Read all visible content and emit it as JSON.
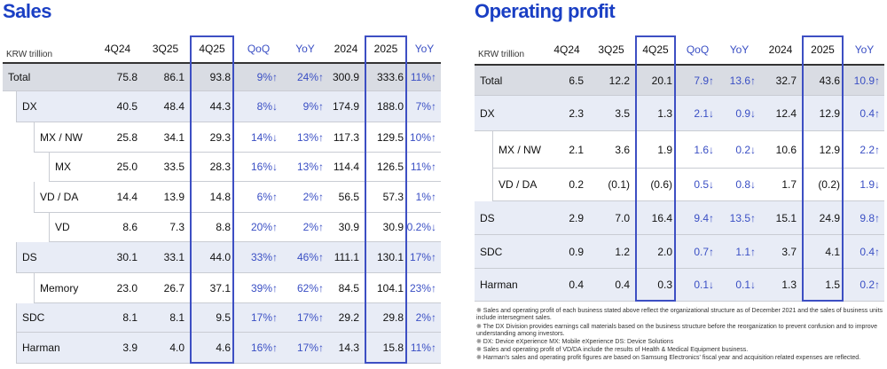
{
  "sales": {
    "title": "Sales",
    "unit": "KRW trillion",
    "columns": [
      "4Q24",
      "3Q25",
      "4Q25",
      "QoQ",
      "YoY",
      "2024",
      "2025",
      "YoY"
    ],
    "rows": [
      {
        "label": "Total",
        "cells": [
          "75.8",
          "86.1",
          "93.8",
          "9%↑",
          "24%↑",
          "300.9",
          "333.6",
          "11%↑"
        ]
      },
      {
        "label": "DX",
        "cells": [
          "40.5",
          "48.4",
          "44.3",
          "8%↓",
          "9%↑",
          "174.9",
          "188.0",
          "7%↑"
        ]
      },
      {
        "label": "MX / NW",
        "cells": [
          "25.8",
          "34.1",
          "29.3",
          "14%↓",
          "13%↑",
          "117.3",
          "129.5",
          "10%↑"
        ]
      },
      {
        "label": "MX",
        "cells": [
          "25.0",
          "33.5",
          "28.3",
          "16%↓",
          "13%↑",
          "114.4",
          "126.5",
          "11%↑"
        ]
      },
      {
        "label": "VD / DA",
        "cells": [
          "14.4",
          "13.9",
          "14.8",
          "6%↑",
          "2%↑",
          "56.5",
          "57.3",
          "1%↑"
        ]
      },
      {
        "label": "VD",
        "cells": [
          "8.6",
          "7.3",
          "8.8",
          "20%↑",
          "2%↑",
          "30.9",
          "30.9",
          "0.2%↓"
        ]
      },
      {
        "label": "DS",
        "cells": [
          "30.1",
          "33.1",
          "44.0",
          "33%↑",
          "46%↑",
          "111.1",
          "130.1",
          "17%↑"
        ]
      },
      {
        "label": "Memory",
        "cells": [
          "23.0",
          "26.7",
          "37.1",
          "39%↑",
          "62%↑",
          "84.5",
          "104.1",
          "23%↑"
        ]
      },
      {
        "label": "SDC",
        "cells": [
          "8.1",
          "8.1",
          "9.5",
          "17%↑",
          "17%↑",
          "29.2",
          "29.8",
          "2%↑"
        ]
      },
      {
        "label": "Harman",
        "cells": [
          "3.9",
          "4.0",
          "4.6",
          "16%↑",
          "17%↑",
          "14.3",
          "15.8",
          "11%↑"
        ]
      }
    ]
  },
  "operating_profit": {
    "title": "Operating profit",
    "unit": "KRW trillion",
    "columns": [
      "4Q24",
      "3Q25",
      "4Q25",
      "QoQ",
      "YoY",
      "2024",
      "2025",
      "YoY"
    ],
    "rows": [
      {
        "label": "Total",
        "cells": [
          "6.5",
          "12.2",
          "20.1",
          "7.9↑",
          "13.6↑",
          "32.7",
          "43.6",
          "10.9↑"
        ]
      },
      {
        "label": "DX",
        "cells": [
          "2.3",
          "3.5",
          "1.3",
          "2.1↓",
          "0.9↓",
          "12.4",
          "12.9",
          "0.4↑"
        ]
      },
      {
        "label": "MX / NW",
        "cells": [
          "2.1",
          "3.6",
          "1.9",
          "1.6↓",
          "0.2↓",
          "10.6",
          "12.9",
          "2.2↑"
        ]
      },
      {
        "label": "VD / DA",
        "cells": [
          "0.2",
          "(0.1)",
          "(0.6)",
          "0.5↓",
          "0.8↓",
          "1.7",
          "(0.2)",
          "1.9↓"
        ]
      },
      {
        "label": "DS",
        "cells": [
          "2.9",
          "7.0",
          "16.4",
          "9.4↑",
          "13.5↑",
          "15.1",
          "24.9",
          "9.8↑"
        ]
      },
      {
        "label": "SDC",
        "cells": [
          "0.9",
          "1.2",
          "2.0",
          "0.7↑",
          "1.1↑",
          "3.7",
          "4.1",
          "0.4↑"
        ]
      },
      {
        "label": "Harman",
        "cells": [
          "0.4",
          "0.4",
          "0.3",
          "0.1↓",
          "0.1↓",
          "1.3",
          "1.5",
          "0.2↑"
        ]
      }
    ],
    "footnotes": [
      "※ Sales and operating profit of each business stated above reflect the organizational structure as of December 2021 and the sales of business units include intersegment sales.",
      "※ The DX Division provides earnings call materials based on the business structure before the reorganization to prevent confusion and to improve understanding among investors.",
      "※ DX: Device eXperience MX: Mobile eXperience DS: Device Solutions",
      "※ Sales and operating profit of VD/DA include the results of Health & Medical Equipment business.",
      "※ Harman's sales and operating profit figures are based on Samsung Electronics' fiscal year and acquisition related expenses are reflected."
    ]
  }
}
